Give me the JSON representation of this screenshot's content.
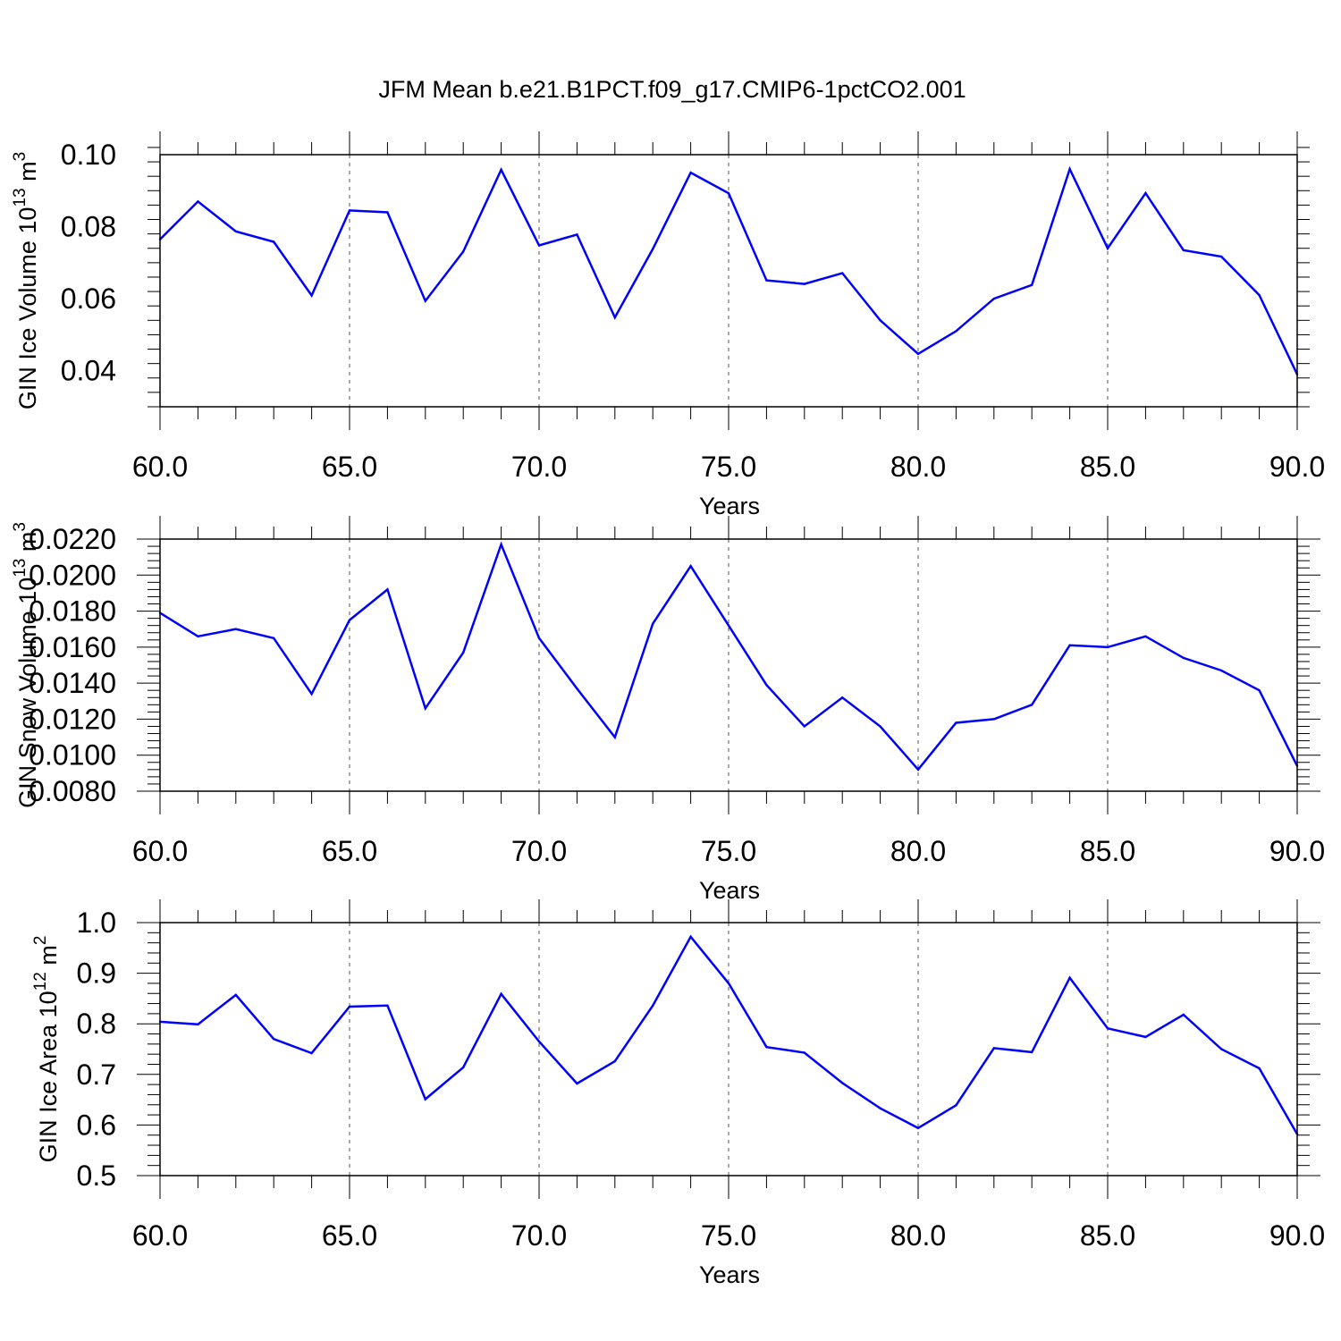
{
  "title": "JFM Mean b.e21.B1PCT.f09_g17.CMIP6-1pctCO2.001",
  "colors": {
    "line": "#0000ff",
    "frame": "#000000",
    "grid": "#555555"
  },
  "chart_data": [
    {
      "type": "line",
      "xlabel": "Years",
      "ylabel": "GIN Ice Volume 10",
      "ylabel_sup": "13",
      "ylabel_unit": " m",
      "ylabel_unit_sup": "3",
      "xlim": [
        60,
        90
      ],
      "ylim": [
        0.03,
        0.1
      ],
      "grid": "vertical-dashed",
      "x_ticks": [
        60,
        65,
        70,
        75,
        80,
        85,
        90
      ],
      "x_tick_labels": [
        "60.0",
        "65.0",
        "70.0",
        "75.0",
        "80.0",
        "85.0",
        "90.0"
      ],
      "y_ticks": [
        0.04,
        0.06,
        0.08,
        0.1
      ],
      "y_tick_labels": [
        "0.04",
        "0.06",
        "0.08",
        "0.10"
      ],
      "x": [
        60,
        61,
        62,
        63,
        64,
        65,
        66,
        67,
        68,
        69,
        70,
        71,
        72,
        73,
        74,
        75,
        76,
        77,
        78,
        79,
        80,
        81,
        82,
        83,
        84,
        85,
        86,
        87,
        88,
        89,
        90
      ],
      "series": [
        {
          "values": [
            0.0765,
            0.087,
            0.0787,
            0.0758,
            0.0609,
            0.0845,
            0.084,
            0.0594,
            0.0731,
            0.0958,
            0.0748,
            0.0778,
            0.0548,
            0.0738,
            0.095,
            0.0893,
            0.0651,
            0.0641,
            0.0671,
            0.054,
            0.0447,
            0.051,
            0.06,
            0.0638,
            0.096,
            0.074,
            0.0893,
            0.0735,
            0.0717,
            0.061,
            0.039
          ]
        }
      ]
    },
    {
      "type": "line",
      "xlabel": "Years",
      "ylabel": "GIN Snow Volume 10",
      "ylabel_sup": "13",
      "ylabel_unit": " m",
      "ylabel_unit_sup": "3",
      "xlim": [
        60,
        90
      ],
      "ylim": [
        0.008,
        0.022
      ],
      "grid": "vertical-dashed",
      "x_ticks": [
        60,
        65,
        70,
        75,
        80,
        85,
        90
      ],
      "x_tick_labels": [
        "60.0",
        "65.0",
        "70.0",
        "75.0",
        "80.0",
        "85.0",
        "90.0"
      ],
      "y_ticks": [
        0.008,
        0.01,
        0.012,
        0.014,
        0.016,
        0.018,
        0.02,
        0.022
      ],
      "y_tick_labels": [
        "0.0080",
        "0.0100",
        "0.0120",
        "0.0140",
        "0.0160",
        "0.0180",
        "0.0200",
        "0.0220"
      ],
      "x": [
        60,
        61,
        62,
        63,
        64,
        65,
        66,
        67,
        68,
        69,
        70,
        71,
        72,
        73,
        74,
        75,
        76,
        77,
        78,
        79,
        80,
        81,
        82,
        83,
        84,
        85,
        86,
        87,
        88,
        89,
        90
      ],
      "series": [
        {
          "values": [
            0.0179,
            0.0166,
            0.017,
            0.0165,
            0.0134,
            0.0175,
            0.0192,
            0.0126,
            0.0157,
            0.0217,
            0.0165,
            0.0137,
            0.011,
            0.0173,
            0.0205,
            0.0172,
            0.0139,
            0.0116,
            0.0132,
            0.0116,
            0.0092,
            0.0118,
            0.012,
            0.0128,
            0.0161,
            0.016,
            0.0166,
            0.0154,
            0.0147,
            0.0136,
            0.0094
          ]
        }
      ]
    },
    {
      "type": "line",
      "xlabel": "Years",
      "ylabel": "GIN Ice Area 10",
      "ylabel_sup": "12",
      "ylabel_unit": " m",
      "ylabel_unit_sup": "2",
      "xlim": [
        60,
        90
      ],
      "ylim": [
        0.5,
        1.0
      ],
      "grid": "vertical-dashed",
      "x_ticks": [
        60,
        65,
        70,
        75,
        80,
        85,
        90
      ],
      "x_tick_labels": [
        "60.0",
        "65.0",
        "70.0",
        "75.0",
        "80.0",
        "85.0",
        "90.0"
      ],
      "y_ticks": [
        0.5,
        0.6,
        0.7,
        0.8,
        0.9,
        1.0
      ],
      "y_tick_labels": [
        "0.5",
        "0.6",
        "0.7",
        "0.8",
        "0.9",
        "1.0"
      ],
      "x": [
        60,
        61,
        62,
        63,
        64,
        65,
        66,
        67,
        68,
        69,
        70,
        71,
        72,
        73,
        74,
        75,
        76,
        77,
        78,
        79,
        80,
        81,
        82,
        83,
        84,
        85,
        86,
        87,
        88,
        89,
        90
      ],
      "series": [
        {
          "values": [
            0.804,
            0.799,
            0.857,
            0.77,
            0.742,
            0.834,
            0.836,
            0.651,
            0.714,
            0.859,
            0.765,
            0.682,
            0.726,
            0.836,
            0.972,
            0.88,
            0.754,
            0.743,
            0.683,
            0.633,
            0.594,
            0.639,
            0.752,
            0.744,
            0.891,
            0.791,
            0.774,
            0.818,
            0.75,
            0.712,
            0.582
          ]
        }
      ]
    }
  ]
}
